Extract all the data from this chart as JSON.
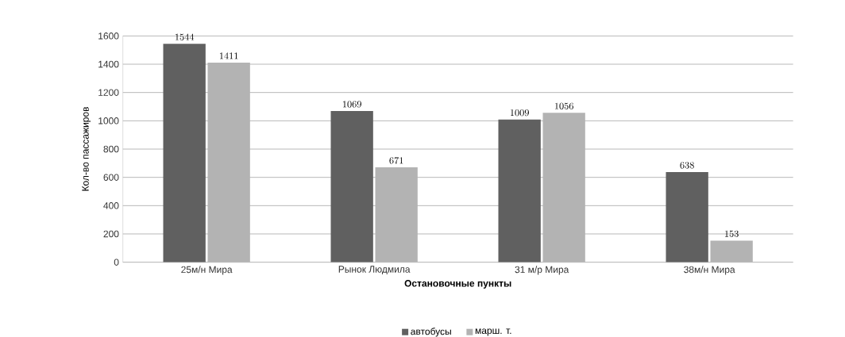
{
  "chart_data": {
    "type": "bar",
    "xlabel": "Остановочные пункты",
    "ylabel": "Кол-во пассажиров",
    "categories": [
      "25м/н Мира",
      "Рынок Людмила",
      "31 м/р Мира",
      "38м/н Мира"
    ],
    "series": [
      {
        "name": "автобусы",
        "color": "#606060",
        "values": [
          1544,
          1069,
          1009,
          638
        ]
      },
      {
        "name": "марш. т.",
        "color": "#b3b3b3",
        "values": [
          1411,
          671,
          1056,
          153
        ]
      }
    ],
    "ylim": [
      0,
      1600
    ],
    "yticks": [
      0,
      200,
      400,
      600,
      800,
      1000,
      1200,
      1400,
      1600
    ],
    "grid": "y",
    "legend": "bottom",
    "data_labels": true
  }
}
